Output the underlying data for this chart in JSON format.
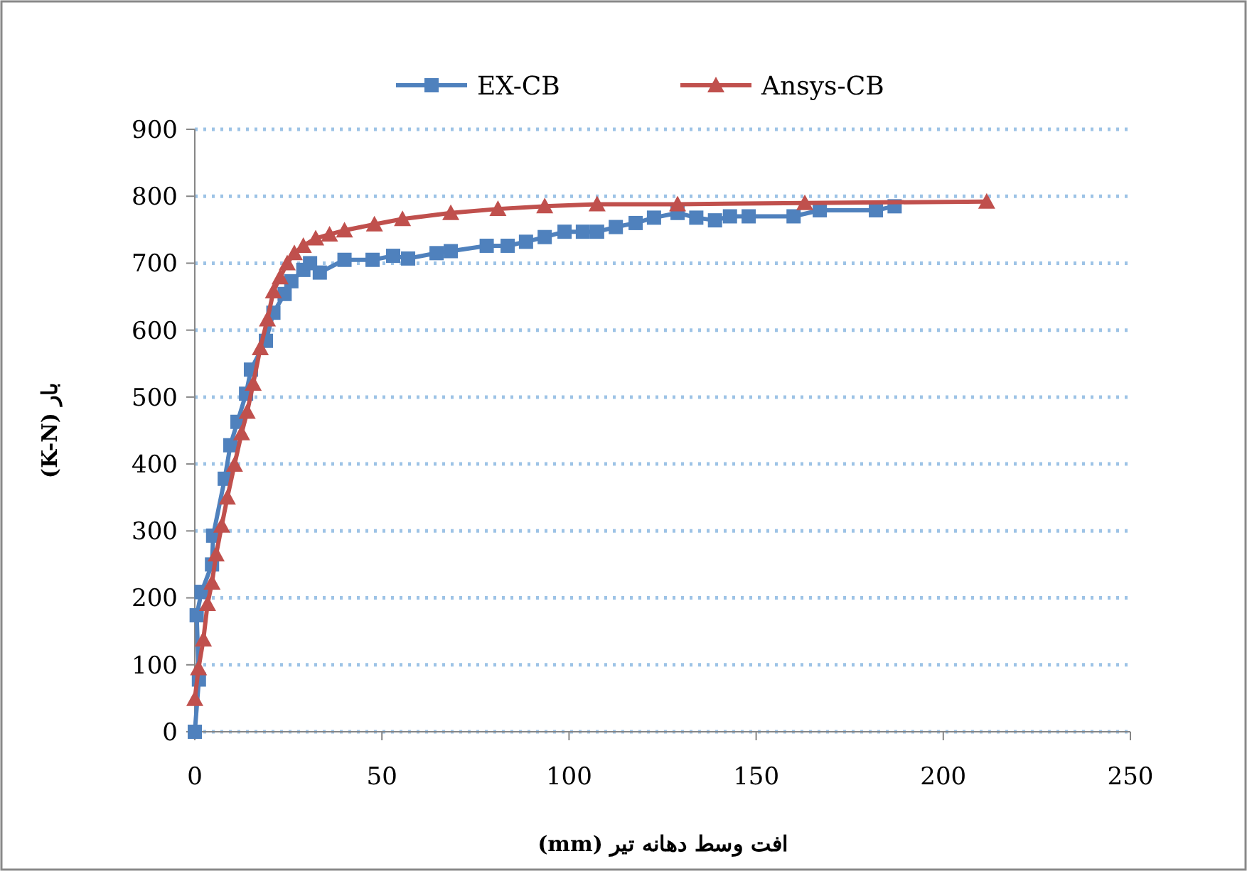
{
  "chart_data": {
    "type": "line",
    "xlabel": "افت وسط دهانه تیر (mm)",
    "ylabel": "بار (K-N)",
    "xlim": [
      0,
      250
    ],
    "xticks": [
      0,
      50,
      100,
      150,
      200,
      250
    ],
    "ylim": [
      0,
      900
    ],
    "yticks": [
      0,
      100,
      200,
      300,
      400,
      500,
      600,
      700,
      800,
      900
    ],
    "grid": "y",
    "legend": "top",
    "series": [
      {
        "name": "EX-CB",
        "color": "#4f81bd",
        "marker": "square",
        "x": [
          0,
          1.1,
          0.5,
          1.8,
          4.6,
          4.9,
          8,
          9.5,
          11.4,
          13.7,
          15,
          19,
          21,
          24,
          25.8,
          29,
          30.8,
          33.4,
          40,
          47.5,
          53,
          57,
          64.6,
          68.4,
          78,
          83.6,
          88.5,
          93.5,
          98.8,
          103.7,
          107.5,
          112.5,
          117.8,
          122.7,
          129,
          134,
          139,
          143,
          148,
          160,
          167,
          182,
          187
        ],
        "values": [
          0,
          78,
          174,
          209,
          250,
          293,
          378,
          428,
          463,
          505,
          541,
          584,
          626,
          654,
          673,
          690,
          700,
          686,
          705,
          705,
          711,
          707,
          715,
          718,
          726,
          726,
          732,
          739,
          747,
          747,
          747,
          754,
          760,
          768,
          775,
          768,
          764,
          770,
          770,
          770,
          779,
          779,
          785
        ]
      },
      {
        "name": "Ansys-CB",
        "color": "#c0504d",
        "marker": "triangle",
        "x": [
          0,
          1,
          2.3,
          3.4,
          4.6,
          5.7,
          7.2,
          8.7,
          10.6,
          12.5,
          14,
          15.6,
          17.5,
          19.4,
          21,
          22.8,
          24.7,
          26.6,
          29,
          32.3,
          36,
          40,
          48,
          55.5,
          68.4,
          81,
          93.5,
          107.5,
          129,
          163,
          211.6
        ],
        "values": [
          49,
          95,
          138,
          191,
          223,
          265,
          308,
          350,
          399,
          446,
          478,
          520,
          573,
          616,
          658,
          679,
          700,
          715,
          726,
          737,
          743,
          749,
          758,
          766,
          775,
          781,
          785,
          788,
          788,
          790,
          792
        ]
      }
    ]
  }
}
